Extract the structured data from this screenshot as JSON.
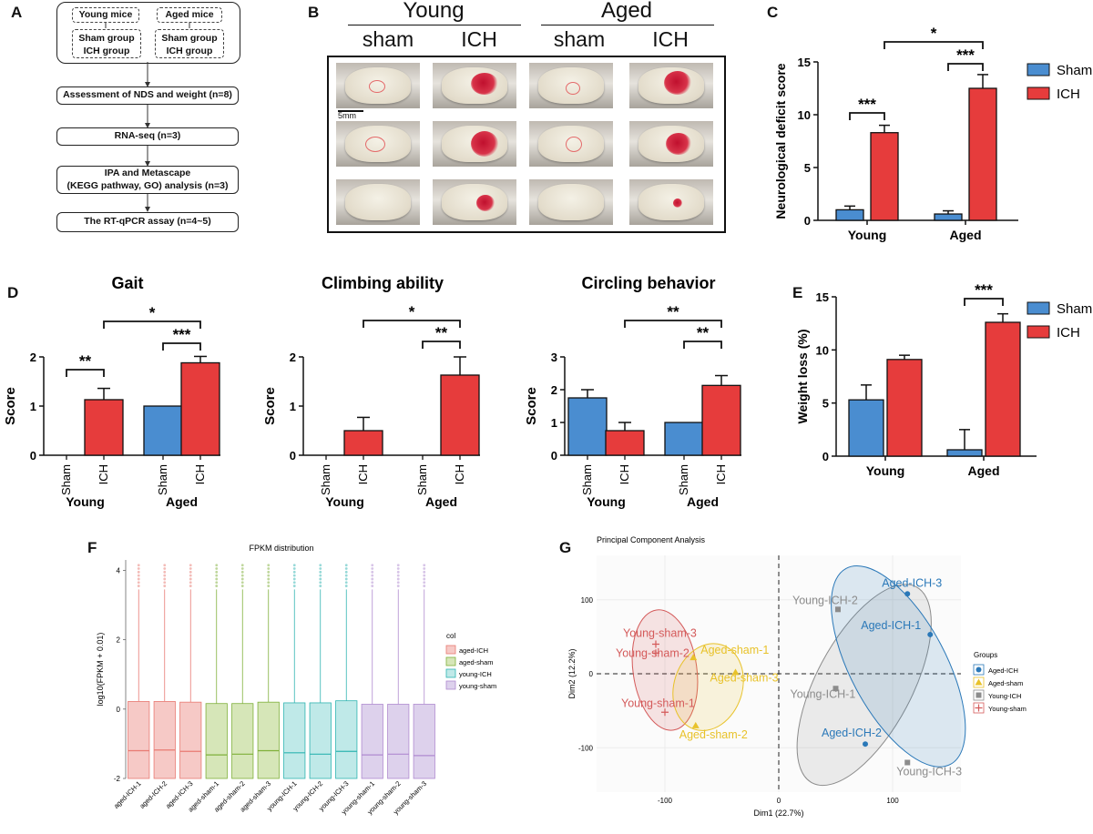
{
  "panel_labels": {
    "A": "A",
    "B": "B",
    "C": "C",
    "D": "D",
    "E": "E",
    "F": "F",
    "G": "G"
  },
  "flowchart": {
    "young_mice": "Young mice",
    "aged_mice": "Aged mice",
    "sham_group_1": "Sham group",
    "ich_group_1": "ICH    group",
    "sham_group_2": "Sham group",
    "ich_group_2": "ICH    group",
    "steps": [
      "Assessment of NDS and weight (n=8)",
      "RNA-seq (n=3)",
      "IPA and Metascape",
      "(KEGG pathway, GO) analysis (n=3)",
      "The RT-qPCR assay (n=4~5)"
    ]
  },
  "photo_panel": {
    "group_young": "Young",
    "group_aged": "Aged",
    "col_labels": [
      "sham",
      "ICH",
      "sham",
      "ICH"
    ],
    "scale_bar": "5mm"
  },
  "colors": {
    "sham": "#4a8dd0",
    "ich": "#e63c3c",
    "aged_ich": "#2a78b8",
    "aged_sham": "#e8c22a",
    "young_ich": "#8c8c8c",
    "young_sham": "#d45a5a"
  },
  "chart_data": [
    {
      "id": "C",
      "type": "bar",
      "title": "",
      "ylabel": "Neurological deficit score",
      "ylim": [
        0,
        15
      ],
      "yticks": [
        "0",
        "5",
        "10",
        "15"
      ],
      "categories": [
        "Young",
        "Aged"
      ],
      "series": [
        {
          "name": "Sham",
          "values": [
            1.0,
            0.6
          ],
          "errors": [
            0.35,
            0.3
          ]
        },
        {
          "name": "ICH",
          "values": [
            8.3,
            12.5
          ],
          "errors": [
            0.7,
            1.3
          ]
        }
      ],
      "legend": [
        "Sham",
        "ICH"
      ],
      "annotations": [
        "***",
        "***",
        "*"
      ]
    },
    {
      "id": "D1",
      "type": "bar",
      "title": "Gait",
      "ylabel": "Score",
      "ylim": [
        0,
        2
      ],
      "yticks": [
        "0",
        "1",
        "2"
      ],
      "bar_labels": [
        "Sham",
        "ICH",
        "Sham",
        "ICH"
      ],
      "group_labels": [
        "Young",
        "Aged"
      ],
      "values": [
        0,
        1.13,
        1.0,
        1.88
      ],
      "errors": [
        0,
        0.23,
        0,
        0.13
      ],
      "annotations": [
        "**",
        "***",
        "*"
      ]
    },
    {
      "id": "D2",
      "type": "bar",
      "title": "Climbing ability",
      "ylabel": "Score",
      "ylim": [
        0,
        2
      ],
      "yticks": [
        "0",
        "1",
        "2"
      ],
      "bar_labels": [
        "Sham",
        "ICH",
        "Sham",
        "ICH"
      ],
      "group_labels": [
        "Young",
        "Aged"
      ],
      "values": [
        0,
        0.5,
        0,
        1.63
      ],
      "errors": [
        0,
        0.27,
        0,
        0.37
      ],
      "annotations": [
        "**",
        "*"
      ]
    },
    {
      "id": "D3",
      "type": "bar",
      "title": "Circling behavior",
      "ylabel": "Score",
      "ylim": [
        0,
        3
      ],
      "yticks": [
        "0",
        "1",
        "2",
        "3"
      ],
      "bar_labels": [
        "Sham",
        "ICH",
        "Sham",
        "ICH"
      ],
      "group_labels": [
        "Young",
        "Aged"
      ],
      "values": [
        1.75,
        0.75,
        1.0,
        2.13
      ],
      "errors": [
        0.25,
        0.25,
        0,
        0.3
      ],
      "annotations": [
        "**",
        "**"
      ]
    },
    {
      "id": "E",
      "type": "bar",
      "ylabel": "Weight loss (%)",
      "ylim": [
        0,
        15
      ],
      "yticks": [
        "0",
        "5",
        "10",
        "15"
      ],
      "categories": [
        "Young",
        "Aged"
      ],
      "series": [
        {
          "name": "Sham",
          "values": [
            5.3,
            0.6
          ],
          "errors": [
            1.4,
            1.9
          ]
        },
        {
          "name": "ICH",
          "values": [
            9.1,
            12.6
          ],
          "errors": [
            0.4,
            0.8
          ]
        }
      ],
      "legend": [
        "Sham",
        "ICH"
      ],
      "annotations": [
        "***"
      ]
    },
    {
      "id": "F",
      "type": "boxplot",
      "title": "FPKM distribution",
      "ylabel": "log10(FPKM + 0.01)",
      "ylim": [
        -2,
        4.3
      ],
      "yticks": [
        "-2",
        "0",
        "2",
        "4"
      ],
      "legend_title": "col",
      "legend": [
        "aged-ICH",
        "aged-sham",
        "young-ICH",
        "young-sham"
      ],
      "samples": [
        {
          "name": "aged-ICH-1",
          "group": "aged-ICH",
          "q1": -2.0,
          "median": -1.2,
          "q3": 0.22,
          "wlow": -2.0,
          "whigh": 3.45
        },
        {
          "name": "aged-ICH-2",
          "group": "aged-ICH",
          "q1": -2.0,
          "median": -1.18,
          "q3": 0.22,
          "wlow": -2.0,
          "whigh": 3.45
        },
        {
          "name": "aged-ICH-3",
          "group": "aged-ICH",
          "q1": -2.0,
          "median": -1.22,
          "q3": 0.2,
          "wlow": -2.0,
          "whigh": 3.45
        },
        {
          "name": "aged-sham-1",
          "group": "aged-sham",
          "q1": -2.0,
          "median": -1.32,
          "q3": 0.16,
          "wlow": -2.0,
          "whigh": 3.45
        },
        {
          "name": "aged-sham-2",
          "group": "aged-sham",
          "q1": -2.0,
          "median": -1.3,
          "q3": 0.16,
          "wlow": -2.0,
          "whigh": 3.45
        },
        {
          "name": "aged-sham-3",
          "group": "aged-sham",
          "q1": -2.0,
          "median": -1.2,
          "q3": 0.2,
          "wlow": -2.0,
          "whigh": 3.45
        },
        {
          "name": "young-ICH-1",
          "group": "young-ICH",
          "q1": -2.0,
          "median": -1.26,
          "q3": 0.18,
          "wlow": -2.0,
          "whigh": 3.45
        },
        {
          "name": "young-ICH-2",
          "group": "young-ICH",
          "q1": -2.0,
          "median": -1.3,
          "q3": 0.18,
          "wlow": -2.0,
          "whigh": 3.45
        },
        {
          "name": "young-ICH-3",
          "group": "young-ICH",
          "q1": -2.0,
          "median": -1.22,
          "q3": 0.24,
          "wlow": -2.0,
          "whigh": 3.45
        },
        {
          "name": "young-sham-1",
          "group": "young-sham",
          "q1": -2.0,
          "median": -1.32,
          "q3": 0.14,
          "wlow": -2.0,
          "whigh": 3.45
        },
        {
          "name": "young-sham-2",
          "group": "young-sham",
          "q1": -2.0,
          "median": -1.3,
          "q3": 0.14,
          "wlow": -2.0,
          "whigh": 3.45
        },
        {
          "name": "young-sham-3",
          "group": "young-sham",
          "q1": -2.0,
          "median": -1.34,
          "q3": 0.14,
          "wlow": -2.0,
          "whigh": 3.45
        }
      ]
    },
    {
      "id": "G",
      "type": "scatter",
      "title": "Principal Component Analysis",
      "xlabel": "Dim1 (22.7%)",
      "ylabel": "Dim2 (12.2%)",
      "xlim": [
        -160,
        160
      ],
      "ylim": [
        -160,
        160
      ],
      "xticks": [
        "-100",
        "0",
        "100"
      ],
      "yticks": [
        "-100",
        "0",
        "100"
      ],
      "legend_title": "Groups",
      "legend": [
        "Aged-ICH",
        "Aged-sham",
        "Young-ICH",
        "Young-sham"
      ],
      "points": [
        {
          "label": "Aged-ICH-3",
          "group": "Aged-ICH",
          "x": 113,
          "y": 108
        },
        {
          "label": "Aged-ICH-1",
          "group": "Aged-ICH",
          "x": 133,
          "y": 53
        },
        {
          "label": "Aged-ICH-2",
          "group": "Aged-ICH",
          "x": 76,
          "y": -95
        },
        {
          "label": "Young-ICH-2",
          "group": "Young-ICH",
          "x": 52,
          "y": 87
        },
        {
          "label": "Young-ICH-1",
          "group": "Young-ICH",
          "x": 50,
          "y": -20
        },
        {
          "label": "Young-ICH-3",
          "group": "Young-ICH",
          "x": 113,
          "y": -120
        },
        {
          "label": "Aged-sham-1",
          "group": "Aged-sham",
          "x": -75,
          "y": 22
        },
        {
          "label": "Aged-sham-3",
          "group": "Aged-sham",
          "x": -38,
          "y": 2
        },
        {
          "label": "Aged-sham-2",
          "group": "Aged-sham",
          "x": -73,
          "y": -70
        },
        {
          "label": "Young-sham-3",
          "group": "Young-sham",
          "x": -108,
          "y": 40
        },
        {
          "label": "Young-sham-2",
          "group": "Young-sham",
          "x": -108,
          "y": 28
        },
        {
          "label": "Young-sham-1",
          "group": "Young-sham",
          "x": -100,
          "y": -52
        }
      ]
    }
  ]
}
